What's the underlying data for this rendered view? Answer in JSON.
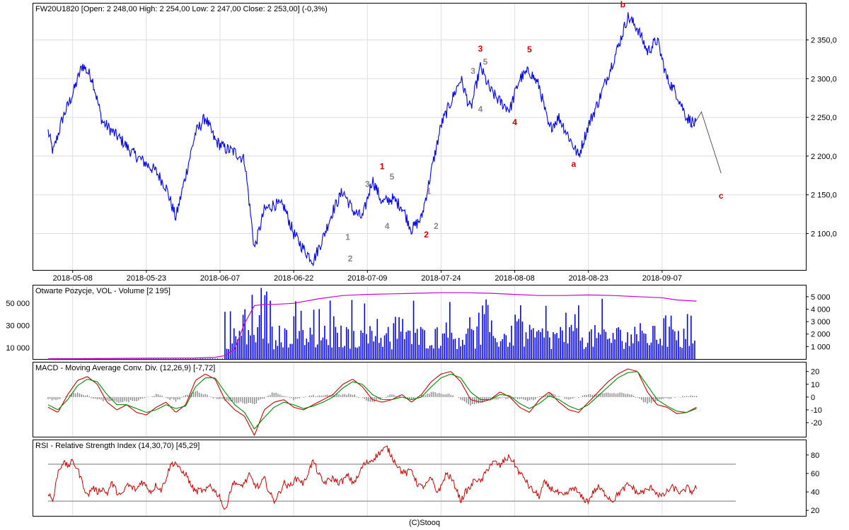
{
  "chart_data": [
    {
      "type": "line",
      "panel": "price",
      "title": "FW20U1820 [Open: 2 248,00  High: 2 254,00  Low: 2 247,00  Close: 2 253,00] (-0,3%)",
      "x_tick_labels": [
        "2018-05-08",
        "2018-05-23",
        "2018-06-07",
        "2018-06-22",
        "2018-07-09",
        "2018-07-24",
        "2018-08-08",
        "2018-08-23",
        "2018-09-07"
      ],
      "y_tick_labels": [
        "2 100,0",
        "2 150,0",
        "2 200,0",
        "2 250,0",
        "2 300,0",
        "2 350,0"
      ],
      "y_ticks": [
        2100,
        2150,
        2200,
        2250,
        2300,
        2350
      ],
      "ylim": [
        2053,
        2397
      ],
      "x_domain": [
        0,
        140
      ],
      "x_tick_positions": [
        5,
        20,
        35,
        50,
        65,
        80,
        95,
        110,
        125
      ],
      "grid": true,
      "series_color": "#0000ff",
      "series": [
        {
          "x": [
            0,
            1,
            3,
            5,
            7,
            9,
            11,
            13,
            15,
            17,
            20,
            22,
            24,
            26,
            28,
            30,
            32,
            34,
            36,
            38,
            40,
            42,
            44,
            46,
            48,
            50,
            52,
            54,
            56,
            58,
            60,
            62,
            64,
            66,
            68,
            70,
            72,
            74,
            76,
            78,
            80,
            82,
            84,
            86,
            88,
            90,
            92,
            94,
            96,
            98,
            100,
            102,
            104,
            106,
            108,
            110,
            112,
            114,
            116,
            118,
            120,
            122,
            124,
            126,
            128,
            130,
            132
          ],
          "y": [
            2232,
            2205,
            2250,
            2280,
            2318,
            2300,
            2245,
            2232,
            2220,
            2205,
            2190,
            2180,
            2160,
            2120,
            2175,
            2230,
            2250,
            2220,
            2210,
            2205,
            2195,
            2080,
            2130,
            2138,
            2135,
            2100,
            2080,
            2065,
            2095,
            2130,
            2155,
            2130,
            2120,
            2170,
            2140,
            2145,
            2135,
            2105,
            2120,
            2180,
            2240,
            2270,
            2300,
            2260,
            2315,
            2285,
            2270,
            2260,
            2300,
            2310,
            2290,
            2235,
            2250,
            2225,
            2200,
            2240,
            2270,
            2305,
            2340,
            2380,
            2365,
            2335,
            2350,
            2300,
            2280,
            2250,
            2240
          ]
        }
      ],
      "annotations": [
        {
          "text": "1",
          "x": 68,
          "y": 2183,
          "color": "#cc0000"
        },
        {
          "text": "2",
          "x": 77,
          "y": 2095,
          "color": "#cc0000"
        },
        {
          "text": "3",
          "x": 88,
          "y": 2335,
          "color": "#cc0000"
        },
        {
          "text": "4",
          "x": 95,
          "y": 2240,
          "color": "#cc0000"
        },
        {
          "text": "5",
          "x": 98,
          "y": 2334,
          "color": "#cc0000"
        },
        {
          "text": "a",
          "x": 107,
          "y": 2186,
          "color": "#cc0000"
        },
        {
          "text": "b",
          "x": 117,
          "y": 2392,
          "color": "#cc0000"
        },
        {
          "text": "c",
          "x": 137,
          "y": 2145,
          "color": "#cc0000"
        },
        {
          "text": "1",
          "x": 61,
          "y": 2092,
          "color": "#888888"
        },
        {
          "text": "2",
          "x": 61.5,
          "y": 2064,
          "color": "#888888"
        },
        {
          "text": "3",
          "x": 65,
          "y": 2160,
          "color": "#888888"
        },
        {
          "text": "4",
          "x": 69,
          "y": 2106,
          "color": "#888888"
        },
        {
          "text": "5",
          "x": 70,
          "y": 2170,
          "color": "#888888"
        },
        {
          "text": "1",
          "x": 77.5,
          "y": 2151,
          "color": "#888888"
        },
        {
          "text": "2",
          "x": 79,
          "y": 2106,
          "color": "#888888"
        },
        {
          "text": "3",
          "x": 86.5,
          "y": 2306,
          "color": "#888888"
        },
        {
          "text": "4",
          "x": 88,
          "y": 2257,
          "color": "#888888"
        },
        {
          "text": "5",
          "x": 89,
          "y": 2318,
          "color": "#888888"
        }
      ],
      "projection": {
        "x": [
          131,
          133,
          137
        ],
        "y": [
          2236,
          2257,
          2178
        ],
        "color": "#555555"
      }
    },
    {
      "type": "bar",
      "panel": "volume",
      "title": "Otwarte Pozycje, VOL - Volume [2 195]",
      "left_tick_labels": [
        "10 000",
        "30 000",
        "50 000"
      ],
      "left_ticks": [
        10000,
        30000,
        50000
      ],
      "left_ylim": [
        0,
        66000
      ],
      "right_tick_labels": [
        "1 000",
        "2 000",
        "3 000",
        "4 000",
        "5 000"
      ],
      "right_ticks": [
        1000,
        2000,
        3000,
        4000,
        5000
      ],
      "right_ylim": [
        0,
        5900
      ],
      "x_domain": [
        0,
        140
      ],
      "volume_color": "#0000ff",
      "volume_start_x": 36,
      "volume_bar_count": 260,
      "volume_typical": 2200,
      "volume_peak": 5800,
      "open_interest_color": "#cc00cc",
      "open_interest": {
        "x": [
          0,
          10,
          20,
          30,
          34,
          36,
          38,
          40,
          42,
          44,
          46,
          50,
          55,
          60,
          65,
          70,
          75,
          80,
          85,
          90,
          95,
          100,
          105,
          110,
          115,
          120,
          125,
          128,
          132
        ],
        "y": [
          200,
          400,
          700,
          900,
          1500,
          3000,
          9000,
          32000,
          48000,
          49000,
          49000,
          50000,
          54000,
          57000,
          58000,
          58500,
          59000,
          59500,
          59500,
          59000,
          58000,
          57000,
          57000,
          57500,
          57000,
          56000,
          55000,
          53000,
          52000
        ]
      }
    },
    {
      "type": "line",
      "panel": "macd",
      "title": "MACD - Moving Average Conv. Div. (12,26,9) [-7,72]",
      "right_tick_labels": [
        "-20",
        "-10",
        "0",
        "10",
        "20"
      ],
      "right_ticks": [
        -20,
        -10,
        0,
        10,
        20
      ],
      "ylim": [
        -31,
        27
      ],
      "x_domain": [
        0,
        140
      ],
      "series": [
        {
          "color": "#cc0000",
          "x": [
            0,
            2,
            4,
            6,
            8,
            10,
            12,
            14,
            16,
            18,
            20,
            22,
            24,
            26,
            28,
            30,
            32,
            34,
            36,
            38,
            40,
            42,
            44,
            46,
            48,
            50,
            52,
            54,
            56,
            58,
            60,
            62,
            64,
            66,
            68,
            70,
            72,
            74,
            76,
            78,
            80,
            82,
            84,
            86,
            88,
            90,
            92,
            94,
            96,
            98,
            100,
            102,
            104,
            106,
            108,
            110,
            112,
            114,
            116,
            118,
            120,
            122,
            124,
            126,
            128,
            130,
            132
          ],
          "y": [
            -8,
            -12,
            2,
            13,
            16,
            10,
            -4,
            -10,
            -6,
            -12,
            -14,
            -8,
            -4,
            -12,
            -6,
            13,
            18,
            14,
            -2,
            -10,
            -15,
            -30,
            -10,
            -4,
            -2,
            -8,
            -10,
            -6,
            -2,
            2,
            10,
            14,
            8,
            -2,
            -4,
            -2,
            2,
            -4,
            2,
            12,
            18,
            20,
            12,
            -2,
            -4,
            -2,
            4,
            0,
            -8,
            -12,
            -2,
            4,
            -4,
            -10,
            -12,
            -4,
            4,
            12,
            18,
            22,
            20,
            4,
            -6,
            -8,
            -13,
            -12,
            -8
          ]
        },
        {
          "color": "#008800",
          "x": [
            0,
            2,
            4,
            6,
            8,
            10,
            12,
            14,
            16,
            18,
            20,
            22,
            24,
            26,
            28,
            30,
            32,
            34,
            36,
            38,
            40,
            42,
            44,
            46,
            48,
            50,
            52,
            54,
            56,
            58,
            60,
            62,
            64,
            66,
            68,
            70,
            72,
            74,
            76,
            78,
            80,
            82,
            84,
            86,
            88,
            90,
            92,
            94,
            96,
            98,
            100,
            102,
            104,
            106,
            108,
            110,
            112,
            114,
            116,
            118,
            120,
            122,
            124,
            126,
            128,
            130,
            132
          ],
          "y": [
            -6,
            -10,
            -2,
            9,
            14,
            12,
            2,
            -6,
            -6,
            -9,
            -12,
            -10,
            -6,
            -9,
            -7,
            8,
            15,
            15,
            4,
            -6,
            -12,
            -25,
            -16,
            -8,
            -4,
            -6,
            -9,
            -7,
            -4,
            0,
            7,
            12,
            10,
            2,
            -2,
            -2,
            0,
            -2,
            0,
            8,
            15,
            18,
            15,
            4,
            -2,
            -2,
            2,
            1,
            -5,
            -9,
            -5,
            1,
            -2,
            -7,
            -10,
            -6,
            1,
            8,
            15,
            19,
            20,
            9,
            -2,
            -7,
            -11,
            -12,
            -9
          ]
        }
      ],
      "histogram_color": "#888888",
      "histogram": {
        "x": [
          2,
          6,
          10,
          14,
          18,
          22,
          26,
          30,
          34,
          38,
          42,
          46,
          50,
          54,
          58,
          62,
          66,
          70,
          74,
          78,
          82,
          86,
          90,
          94,
          98,
          102,
          106,
          110,
          114,
          118,
          122,
          126,
          130
        ],
        "y": [
          -2,
          4,
          -2,
          -4,
          -3,
          2,
          -3,
          5,
          -1,
          -4,
          -5,
          4,
          -2,
          1,
          2,
          2,
          -4,
          2,
          -2,
          4,
          2,
          -6,
          -2,
          -1,
          -3,
          3,
          -2,
          2,
          3,
          3,
          -5,
          -1,
          1
        ]
      }
    },
    {
      "type": "line",
      "panel": "rsi",
      "title": "RSI - Relative Strength Index (14,30,70) [45,29]",
      "right_tick_labels": [
        "20",
        "40",
        "60",
        "80"
      ],
      "right_ticks": [
        20,
        40,
        60,
        80
      ],
      "ylim": [
        14,
        96
      ],
      "x_domain": [
        0,
        140
      ],
      "levels": [
        30,
        70
      ],
      "level_color": "#777777",
      "color": "#cc0000",
      "x": [
        0,
        1,
        2,
        3,
        4,
        5,
        6,
        7,
        8,
        9,
        10,
        11,
        12,
        13,
        14,
        15,
        16,
        17,
        18,
        19,
        20,
        21,
        22,
        23,
        24,
        25,
        26,
        27,
        28,
        29,
        30,
        31,
        32,
        33,
        34,
        35,
        36,
        37,
        38,
        39,
        40,
        41,
        42,
        43,
        44,
        45,
        46,
        47,
        48,
        49,
        50,
        51,
        52,
        53,
        54,
        55,
        56,
        57,
        58,
        59,
        60,
        61,
        62,
        63,
        64,
        65,
        66,
        67,
        68,
        69,
        70,
        71,
        72,
        73,
        74,
        75,
        76,
        77,
        78,
        79,
        80,
        81,
        82,
        83,
        84,
        85,
        86,
        87,
        88,
        89,
        90,
        91,
        92,
        93,
        94,
        95,
        96,
        97,
        98,
        99,
        100,
        101,
        102,
        103,
        104,
        105,
        106,
        107,
        108,
        109,
        110,
        111,
        112,
        113,
        114,
        115,
        116,
        117,
        118,
        119,
        120,
        121,
        122,
        123,
        124,
        125,
        126,
        127,
        128,
        129,
        130,
        131,
        132
      ],
      "y": [
        40,
        30,
        62,
        72,
        68,
        73,
        65,
        50,
        35,
        45,
        40,
        44,
        38,
        50,
        40,
        35,
        48,
        45,
        42,
        52,
        46,
        40,
        48,
        42,
        55,
        70,
        72,
        62,
        60,
        48,
        40,
        42,
        40,
        48,
        40,
        35,
        18,
        40,
        52,
        45,
        50,
        58,
        48,
        45,
        55,
        40,
        30,
        38,
        50,
        45,
        52,
        55,
        48,
        62,
        74,
        60,
        50,
        52,
        55,
        50,
        52,
        58,
        50,
        55,
        68,
        72,
        75,
        80,
        85,
        88,
        78,
        70,
        62,
        60,
        65,
        50,
        45,
        48,
        55,
        40,
        45,
        60,
        55,
        45,
        30,
        40,
        45,
        55,
        50,
        60,
        70,
        72,
        68,
        75,
        78,
        70,
        60,
        55,
        45,
        40,
        35,
        50,
        45,
        42,
        38,
        35,
        40,
        45,
        38,
        32,
        30,
        40,
        45,
        40,
        35,
        30,
        38,
        42,
        48,
        45,
        38,
        40,
        42,
        45,
        38,
        35,
        40,
        45,
        42,
        38,
        45,
        40,
        45
      ]
    }
  ],
  "footer": "(C)Stooq"
}
